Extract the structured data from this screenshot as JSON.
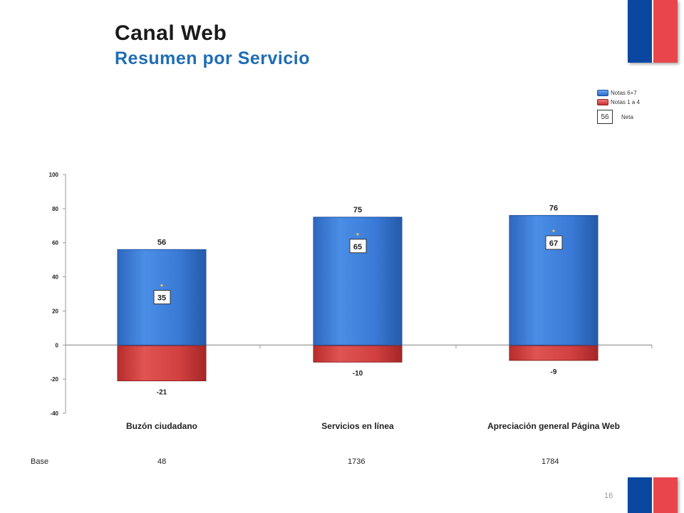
{
  "page": {
    "title": "Canal Web",
    "subtitle": "Resumen por Servicio",
    "page_number": "16",
    "base_label": "Base",
    "bases": [
      "48",
      "1736",
      "1784"
    ]
  },
  "legend": {
    "positive_label": "Notas 6+7",
    "negative_label": "Notas 1 a 4",
    "neta_example": "56",
    "neta_label": "Neta"
  },
  "colors": {
    "positive": "#3b7fd8",
    "negative": "#d23d3d",
    "title": "#1a1a1a",
    "subtitle": "#1f6db5"
  },
  "chart_data": {
    "type": "bar",
    "categories": [
      "Buzón ciudadano",
      "Servicios en línea",
      "Apreciación general Página Web"
    ],
    "series": [
      {
        "name": "Notas 6+7",
        "values": [
          56,
          75,
          76
        ]
      },
      {
        "name": "Notas 1 a 4",
        "values": [
          -21,
          -10,
          -9
        ]
      },
      {
        "name": "Neta",
        "values": [
          35,
          65,
          67
        ]
      }
    ],
    "y_ticks": [
      100,
      80,
      60,
      40,
      20,
      0,
      -20,
      -40
    ],
    "ylim": [
      -40,
      100
    ],
    "grid": false,
    "legend_position": "top-right"
  }
}
